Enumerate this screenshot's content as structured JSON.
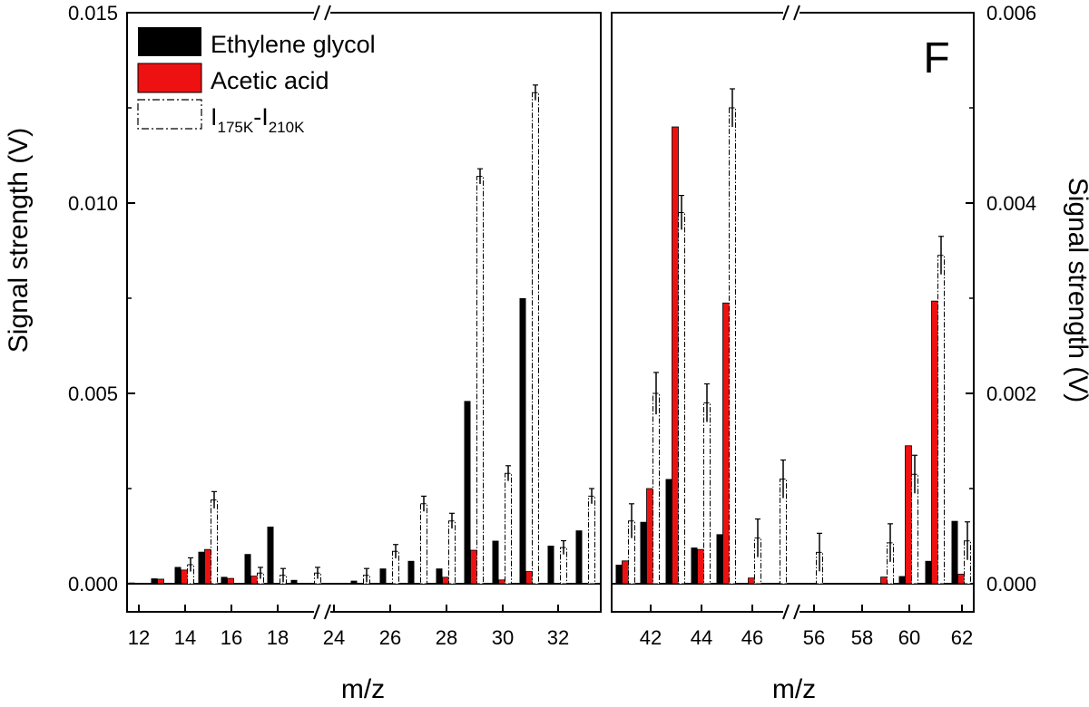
{
  "panel_label": "F",
  "colors": {
    "ethylene_glycol": "#000000",
    "acetic_acid": "#ee1111",
    "difference": "#ffffff"
  },
  "legend": {
    "placement": "top-left",
    "items": [
      {
        "key": "ethylene_glycol",
        "label": "Ethylene glycol"
      },
      {
        "key": "acetic_acid",
        "label": "Acetic acid"
      },
      {
        "key": "difference",
        "label_I": "I",
        "label_sub1": "175K",
        "label_dash": "-I",
        "label_sub2": "210K"
      }
    ]
  },
  "chart_data": [
    {
      "type": "bar",
      "panel": "left",
      "xlabel": "m/z",
      "ylabel": "Signal strength (V)",
      "ylim": [
        0,
        0.015
      ],
      "yticks": [
        "0.000",
        "0.005",
        "0.010",
        "0.015"
      ],
      "xticks": [
        "12",
        "14",
        "16",
        "18",
        "24",
        "26",
        "28",
        "30",
        "32"
      ],
      "axis_break": "between 18 and 24 (after 20)",
      "categories": [
        "12",
        "13",
        "14",
        "15",
        "16",
        "17",
        "18",
        "19",
        "20",
        "25",
        "26",
        "27",
        "28",
        "29",
        "30",
        "31",
        "32",
        "33"
      ],
      "series": [
        {
          "name": "Ethylene glycol",
          "key": "ethylene_glycol",
          "values": [
            3e-05,
            0.00014,
            0.00044,
            0.00084,
            0.00018,
            0.00078,
            0.0015,
            0.0001,
            0,
            8e-05,
            0.0004,
            0.0006,
            0.0004,
            0.0048,
            0.00113,
            0.0075,
            0.001,
            0.0014
          ]
        },
        {
          "name": "Acetic acid",
          "key": "acetic_acid",
          "values": [
            1e-05,
            0.00012,
            0.00036,
            0.0009,
            0.00014,
            0.0002,
            0,
            0,
            0,
            0,
            0,
            0,
            0.00017,
            0.00088,
            0.0001,
            0.00032,
            0,
            0
          ]
        },
        {
          "name": "I175K-I210K",
          "key": "difference",
          "values": [
            0,
            0,
            0.0005,
            0.0022,
            0,
            0.00028,
            0.00022,
            0,
            0.00028,
            0.00022,
            0.00085,
            0.0021,
            0.00165,
            0.0107,
            0.0029,
            0.0129,
            0.00095,
            0.0023
          ],
          "errors": [
            0,
            0,
            0.00018,
            0.00022,
            0,
            0.00015,
            0.00018,
            0,
            0.00015,
            0.00018,
            0.00018,
            0.0002,
            0.0002,
            0.0002,
            0.0002,
            0.0002,
            0.00018,
            0.0002
          ]
        }
      ]
    },
    {
      "type": "bar",
      "panel": "right",
      "xlabel": "m/z",
      "ylabel": "Signal strength (V)",
      "ylim": [
        0,
        0.006
      ],
      "yticks": [
        "0.000",
        "0.002",
        "0.004",
        "0.006"
      ],
      "xticks": [
        "42",
        "44",
        "46",
        "56",
        "58",
        "60",
        "62"
      ],
      "axis_break": "between 46 and 56 (after 47)",
      "categories": [
        "41",
        "42",
        "43",
        "44",
        "45",
        "46",
        "47",
        "55",
        "56",
        "57",
        "59",
        "60",
        "61",
        "62"
      ],
      "series": [
        {
          "name": "Ethylene glycol",
          "key": "ethylene_glycol",
          "values": [
            0.0002,
            0.00065,
            0.0011,
            0.00038,
            0.00052,
            0,
            0,
            1.5e-05,
            0,
            0,
            0,
            8e-05,
            0.00024,
            0.00066
          ]
        },
        {
          "name": "Acetic acid",
          "key": "acetic_acid",
          "values": [
            0.00024,
            0.001,
            0.0048,
            0.00036,
            0.00295,
            6e-05,
            0,
            0,
            0,
            0,
            7e-05,
            0.00145,
            0.00297,
            0.0001
          ]
        },
        {
          "name": "I175K-I210K",
          "key": "difference",
          "values": [
            0.00066,
            0.002,
            0.0039,
            0.0019,
            0.005,
            0.00048,
            0.0011,
            0,
            0.00033,
            0,
            0.00043,
            0.00115,
            0.00345,
            0.00045
          ],
          "errors": [
            0.00018,
            0.00022,
            0.00018,
            0.0002,
            0.0002,
            0.0002,
            0.0002,
            0,
            0.0002,
            0,
            0.0002,
            0.0002,
            0.0002,
            0.0002
          ]
        }
      ]
    }
  ]
}
